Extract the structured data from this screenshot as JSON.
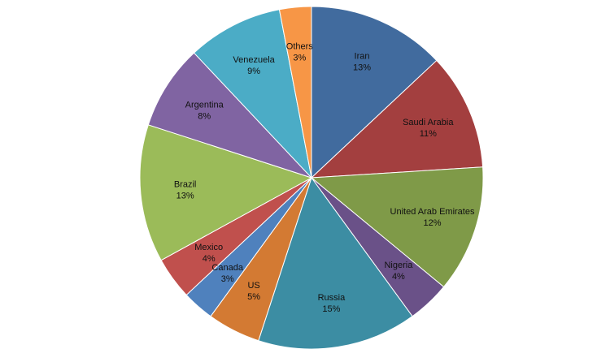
{
  "chart_data": {
    "type": "pie",
    "title": "",
    "slices": [
      {
        "label": "Iran",
        "value": 13,
        "pct_label": "13%",
        "color": "#416B9E"
      },
      {
        "label": "Saudi Arabia",
        "value": 11,
        "pct_label": "11%",
        "color": "#A33F3F"
      },
      {
        "label": "United Arab Emirates",
        "value": 12,
        "pct_label": "12%",
        "color": "#7F9A48"
      },
      {
        "label": "Nigeria",
        "value": 4,
        "pct_label": "4%",
        "color": "#6A5188"
      },
      {
        "label": "Russia",
        "value": 15,
        "pct_label": "15%",
        "color": "#3C8DA3"
      },
      {
        "label": "US",
        "value": 5,
        "pct_label": "5%",
        "color": "#D37A33"
      },
      {
        "label": "Canada",
        "value": 3,
        "pct_label": "3%",
        "color": "#4F81BD"
      },
      {
        "label": "Mexico",
        "value": 4,
        "pct_label": "4%",
        "color": "#C0504D"
      },
      {
        "label": "Brazil",
        "value": 13,
        "pct_label": "13%",
        "color": "#9BBB59"
      },
      {
        "label": "Argentina",
        "value": 8,
        "pct_label": "8%",
        "color": "#8064A2"
      },
      {
        "label": "Venezuela",
        "value": 9,
        "pct_label": "9%",
        "color": "#4BACC6"
      },
      {
        "label": "Others",
        "value": 3,
        "pct_label": "3%",
        "color": "#F79646"
      }
    ],
    "start_angle": "12 o'clock",
    "direction": "clockwise",
    "legend": "none"
  }
}
